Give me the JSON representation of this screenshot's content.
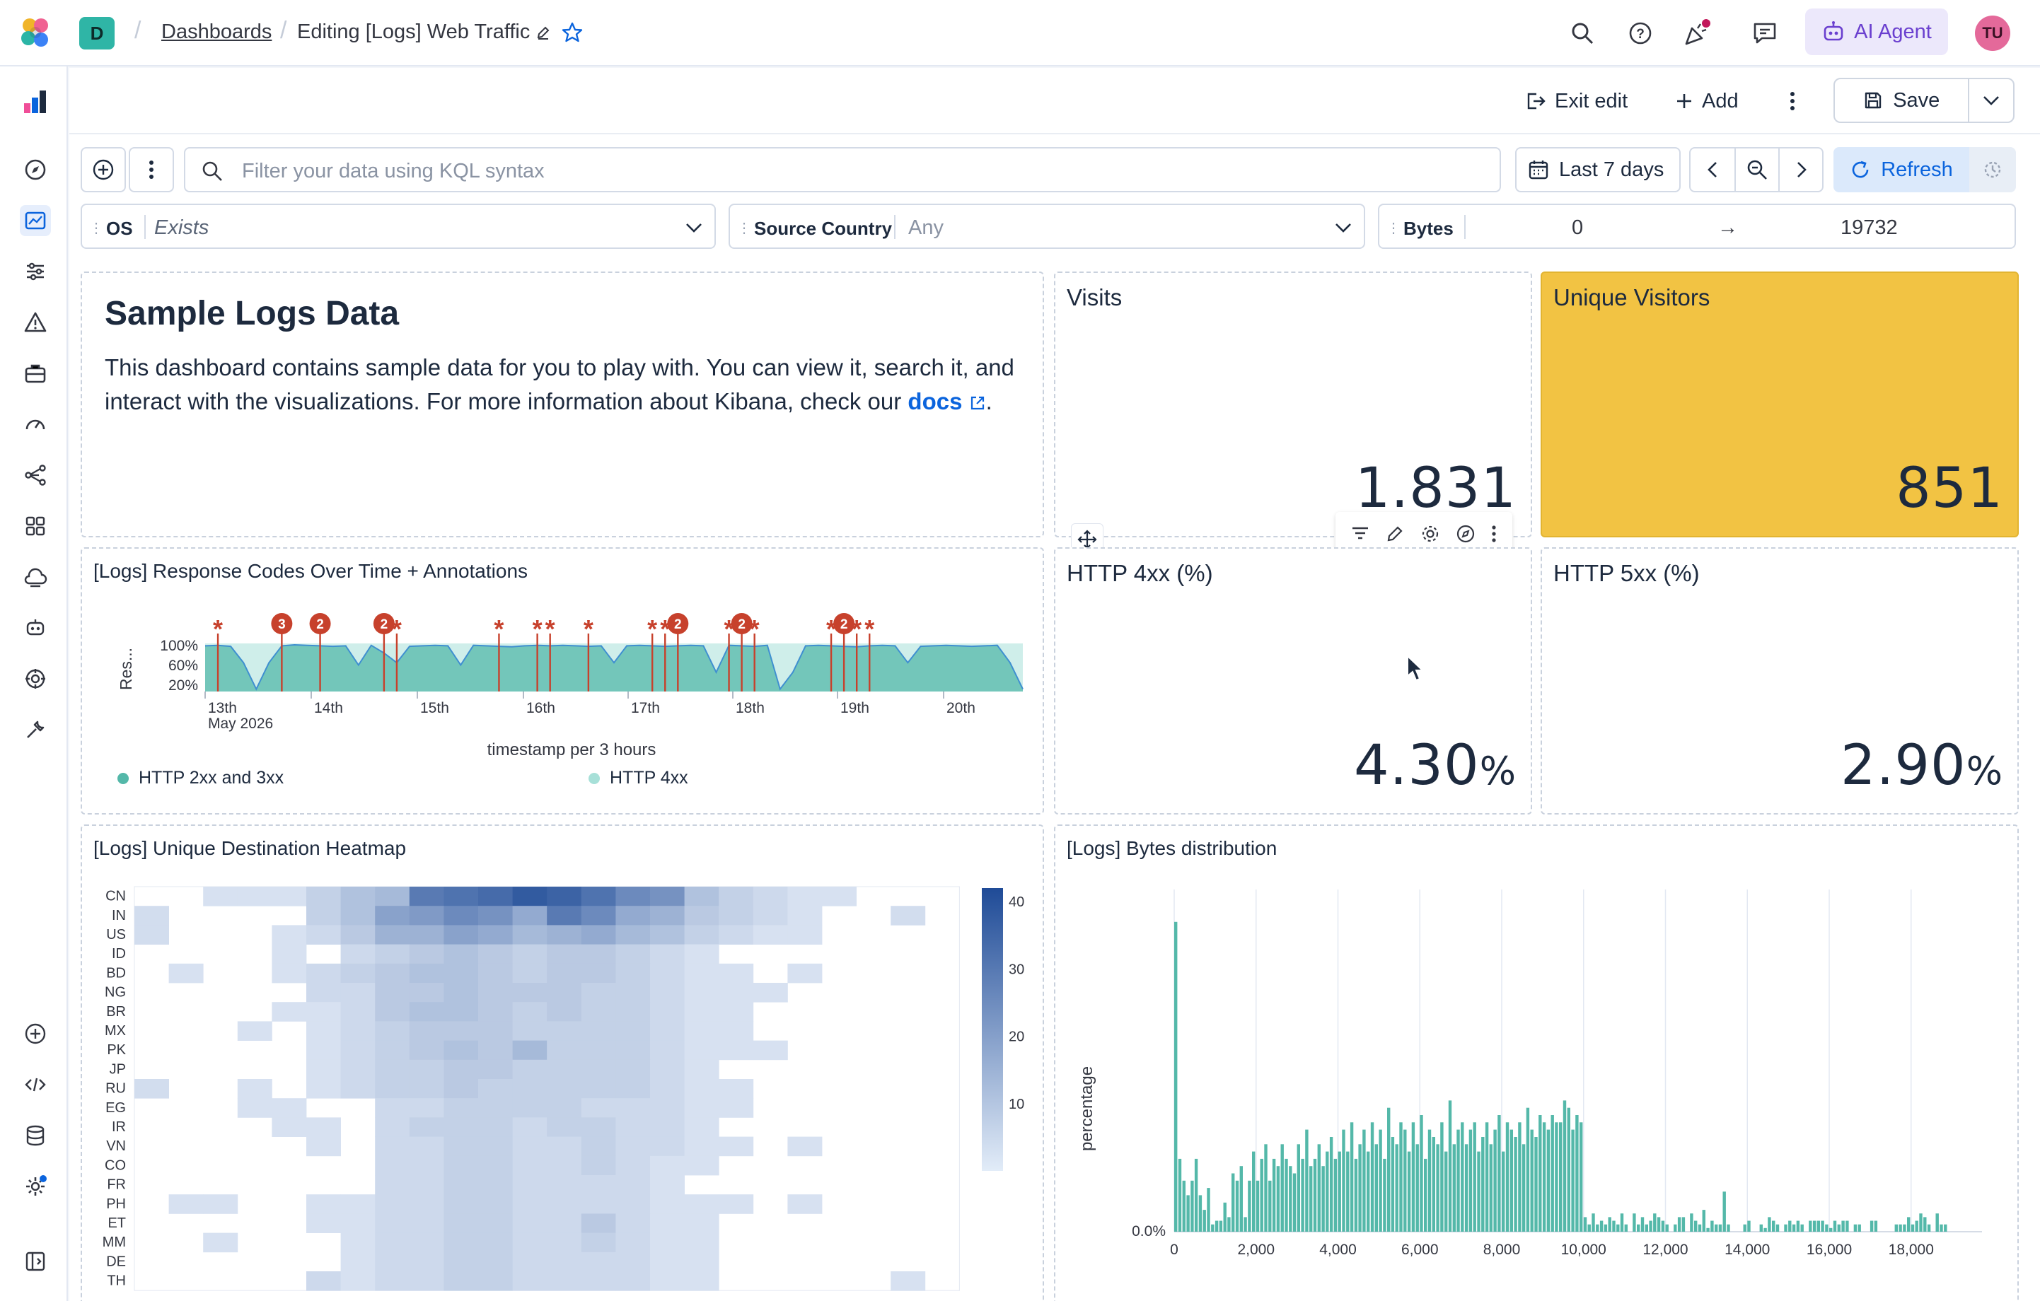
{
  "header": {
    "space_initial": "D",
    "breadcrumb_dashboards": "Dashboards",
    "breadcrumb_current": "Editing [Logs] Web Traffic",
    "ai_agent_label": "AI Agent",
    "user_initials": "TU"
  },
  "toolbar": {
    "exit_edit_label": "Exit edit",
    "add_label": "Add",
    "save_label": "Save"
  },
  "query": {
    "placeholder": "Filter your data using KQL syntax",
    "date_range_label": "Last 7 days",
    "refresh_label": "Refresh"
  },
  "controls": {
    "os": {
      "label": "OS",
      "value": "Exists"
    },
    "source_country": {
      "label": "Source Country",
      "value": "Any"
    },
    "bytes": {
      "label": "Bytes",
      "min": "0",
      "arrow": "→",
      "max": "19732"
    }
  },
  "markdown_panel": {
    "title": "Sample Logs Data",
    "text": "This dashboard contains sample data for you to play with. You can view it, search it, and interact with the visualizations. For more information about Kibana, check our",
    "link": "docs",
    "after_link": "."
  },
  "metrics": {
    "visits": {
      "title": "Visits",
      "value": "1.831"
    },
    "unique_visitors": {
      "title": "Unique Visitors",
      "value": "851",
      "color": "#f2c343"
    },
    "http_4xx": {
      "title": "HTTP 4xx (%)",
      "value": "4.30",
      "unit": "%"
    },
    "http_5xx": {
      "title": "HTTP 5xx (%)",
      "value": "2.90",
      "unit": "%"
    }
  },
  "colors": {
    "accent": "#0b64dd",
    "teal": "#54b8a9",
    "teal_light": "#a7e0d8",
    "annotation": "#c7412c",
    "heat_dark": "#1f4b97"
  },
  "chart_data": [
    {
      "type": "area",
      "title": "[Logs] Response Codes Over Time + Annotations",
      "ylabel": "Res...",
      "xlabel": "timestamp per 3 hours",
      "y_ticks": [
        "100%",
        "60%",
        "20%"
      ],
      "x_ticks": [
        "13th",
        "14th",
        "15th",
        "16th",
        "17th",
        "18th",
        "19th",
        "20th"
      ],
      "x_sublabel": "May 2026",
      "series": [
        {
          "name": "HTTP 2xx and 3xx",
          "color": "#54b8a9"
        },
        {
          "name": "HTTP 4xx",
          "color": "#a7e0d8"
        }
      ],
      "x": [
        0,
        1,
        2,
        3,
        4,
        5,
        6,
        7,
        8,
        9,
        10,
        11,
        12,
        13,
        14,
        15,
        16,
        17,
        18,
        19,
        20,
        21,
        22,
        23,
        24,
        25,
        26,
        27,
        28,
        29,
        30,
        31,
        32,
        33,
        34,
        35,
        36,
        37,
        38,
        39,
        40,
        41,
        42,
        43,
        44,
        45,
        46,
        47,
        48,
        49,
        50,
        51,
        52,
        53,
        54,
        55,
        56,
        57,
        58,
        59,
        60,
        61,
        62,
        63,
        64
      ],
      "values": [
        95,
        96,
        94,
        60,
        5,
        60,
        95,
        97,
        96,
        95,
        94,
        95,
        55,
        96,
        80,
        60,
        94,
        95,
        96,
        95,
        55,
        96,
        95,
        94,
        93,
        95,
        96,
        95,
        96,
        95,
        94,
        95,
        60,
        95,
        96,
        95,
        94,
        95,
        96,
        95,
        40,
        96,
        95,
        94,
        96,
        5,
        40,
        95,
        96,
        95,
        94,
        93,
        95,
        96,
        95,
        60,
        94,
        95,
        96,
        95,
        94,
        95,
        96,
        60,
        5
      ],
      "annotations": [
        {
          "x": 1,
          "label": "*"
        },
        {
          "x": 6,
          "label": "3"
        },
        {
          "x": 9,
          "label": "2"
        },
        {
          "x": 14,
          "label": "2"
        },
        {
          "x": 15,
          "label": "*"
        },
        {
          "x": 23,
          "label": "*"
        },
        {
          "x": 26,
          "label": "*"
        },
        {
          "x": 27,
          "label": "*"
        },
        {
          "x": 30,
          "label": "*"
        },
        {
          "x": 35,
          "label": "*"
        },
        {
          "x": 36,
          "label": "*"
        },
        {
          "x": 37,
          "label": "2"
        },
        {
          "x": 41,
          "label": "*"
        },
        {
          "x": 42,
          "label": "2"
        },
        {
          "x": 43,
          "label": "*"
        },
        {
          "x": 49,
          "label": "*"
        },
        {
          "x": 50,
          "label": "2"
        },
        {
          "x": 51,
          "label": "*"
        },
        {
          "x": 52,
          "label": "*"
        }
      ]
    },
    {
      "type": "heatmap",
      "title": "[Logs] Unique Destination Heatmap",
      "rows": [
        "CN",
        "IN",
        "US",
        "ID",
        "BD",
        "NG",
        "BR",
        "MX",
        "PK",
        "JP",
        "RU",
        "EG",
        "IR",
        "VN",
        "CO",
        "FR",
        "PH",
        "ET",
        "MM",
        "DE",
        "TH"
      ],
      "columns": 24,
      "legend_ticks": [
        "40",
        "30",
        "20",
        "10"
      ],
      "legend_range": [
        0,
        42
      ],
      "values": [
        [
          0,
          0,
          4,
          4,
          4,
          8,
          12,
          14,
          30,
          32,
          34,
          38,
          36,
          32,
          26,
          24,
          12,
          8,
          6,
          4,
          4,
          0,
          0,
          0
        ],
        [
          5,
          0,
          0,
          0,
          0,
          8,
          12,
          20,
          22,
          26,
          24,
          18,
          30,
          26,
          18,
          16,
          10,
          8,
          6,
          4,
          0,
          0,
          5,
          0
        ],
        [
          5,
          0,
          0,
          0,
          4,
          6,
          10,
          16,
          16,
          20,
          18,
          14,
          16,
          18,
          14,
          12,
          8,
          6,
          4,
          4,
          0,
          0,
          0,
          0
        ],
        [
          0,
          0,
          0,
          0,
          4,
          0,
          6,
          8,
          10,
          12,
          10,
          8,
          10,
          10,
          8,
          6,
          4,
          0,
          0,
          0,
          0,
          0,
          0,
          0
        ],
        [
          0,
          4,
          0,
          0,
          4,
          6,
          8,
          10,
          12,
          12,
          10,
          8,
          10,
          10,
          8,
          6,
          4,
          4,
          0,
          4,
          0,
          0,
          0,
          0
        ],
        [
          0,
          0,
          0,
          0,
          0,
          6,
          6,
          10,
          10,
          12,
          10,
          10,
          10,
          8,
          8,
          6,
          4,
          4,
          4,
          0,
          0,
          0,
          0,
          0
        ],
        [
          0,
          0,
          0,
          0,
          4,
          4,
          6,
          10,
          12,
          12,
          10,
          8,
          10,
          8,
          8,
          6,
          4,
          4,
          0,
          0,
          0,
          0,
          0,
          0
        ],
        [
          0,
          0,
          0,
          4,
          0,
          4,
          6,
          8,
          10,
          10,
          10,
          8,
          8,
          8,
          8,
          6,
          4,
          4,
          0,
          0,
          0,
          0,
          0,
          0
        ],
        [
          0,
          0,
          0,
          0,
          0,
          4,
          6,
          8,
          10,
          12,
          10,
          14,
          8,
          8,
          8,
          6,
          4,
          4,
          4,
          0,
          0,
          0,
          0,
          0
        ],
        [
          0,
          0,
          0,
          0,
          0,
          4,
          6,
          8,
          8,
          10,
          10,
          8,
          8,
          8,
          8,
          6,
          4,
          0,
          0,
          0,
          0,
          0,
          0,
          0
        ],
        [
          5,
          0,
          0,
          4,
          0,
          4,
          6,
          8,
          8,
          10,
          8,
          8,
          8,
          8,
          8,
          6,
          4,
          4,
          0,
          0,
          0,
          0,
          0,
          0
        ],
        [
          0,
          0,
          0,
          4,
          4,
          0,
          0,
          6,
          6,
          8,
          8,
          8,
          8,
          6,
          6,
          6,
          4,
          4,
          0,
          0,
          0,
          0,
          0,
          0
        ],
        [
          0,
          0,
          0,
          0,
          4,
          4,
          0,
          6,
          8,
          8,
          8,
          6,
          8,
          8,
          6,
          6,
          4,
          0,
          0,
          0,
          0,
          0,
          0,
          0
        ],
        [
          0,
          0,
          0,
          0,
          0,
          4,
          0,
          6,
          6,
          8,
          8,
          6,
          6,
          8,
          6,
          6,
          4,
          4,
          0,
          4,
          0,
          0,
          0,
          0
        ],
        [
          0,
          0,
          0,
          0,
          0,
          0,
          0,
          6,
          6,
          8,
          8,
          6,
          6,
          8,
          6,
          4,
          4,
          0,
          0,
          0,
          0,
          0,
          0,
          0
        ],
        [
          0,
          0,
          0,
          0,
          0,
          0,
          0,
          6,
          6,
          8,
          8,
          6,
          6,
          6,
          6,
          4,
          0,
          0,
          0,
          0,
          0,
          0,
          0,
          0
        ],
        [
          0,
          4,
          4,
          0,
          0,
          4,
          4,
          6,
          6,
          8,
          8,
          6,
          6,
          6,
          6,
          4,
          4,
          4,
          0,
          4,
          0,
          0,
          0,
          0
        ],
        [
          0,
          0,
          0,
          0,
          0,
          4,
          4,
          6,
          6,
          8,
          8,
          6,
          6,
          10,
          6,
          4,
          4,
          0,
          0,
          0,
          0,
          0,
          0,
          0
        ],
        [
          0,
          0,
          4,
          0,
          0,
          0,
          4,
          6,
          6,
          8,
          8,
          6,
          6,
          8,
          6,
          4,
          4,
          0,
          0,
          0,
          0,
          0,
          0,
          0
        ],
        [
          0,
          0,
          0,
          0,
          0,
          0,
          4,
          6,
          6,
          8,
          8,
          6,
          6,
          6,
          6,
          4,
          4,
          0,
          0,
          0,
          0,
          0,
          0,
          0
        ],
        [
          0,
          0,
          0,
          0,
          0,
          6,
          4,
          6,
          6,
          8,
          8,
          6,
          6,
          6,
          6,
          4,
          4,
          0,
          0,
          0,
          0,
          0,
          4,
          0
        ]
      ]
    },
    {
      "type": "bar",
      "title": "[Logs] Bytes distribution",
      "ylabel": "percentage",
      "y_tick": "0.0%",
      "x_ticks": [
        "0",
        "2,000",
        "4,000",
        "6,000",
        "8,000",
        "10,000",
        "12,000",
        "14,000",
        "16,000",
        "18,000"
      ],
      "x_range": [
        0,
        19732
      ],
      "bin_width": 100,
      "values": [
        85,
        20,
        14,
        10,
        14,
        20,
        10,
        6,
        12,
        2,
        3,
        3,
        8,
        4,
        16,
        14,
        18,
        4,
        14,
        22,
        14,
        20,
        24,
        14,
        20,
        18,
        24,
        20,
        18,
        16,
        24,
        20,
        28,
        18,
        20,
        24,
        18,
        22,
        26,
        20,
        22,
        28,
        22,
        30,
        20,
        24,
        28,
        22,
        30,
        24,
        28,
        20,
        34,
        26,
        24,
        30,
        28,
        22,
        30,
        24,
        32,
        20,
        28,
        26,
        24,
        30,
        22,
        36,
        24,
        28,
        30,
        24,
        28,
        30,
        22,
        26,
        30,
        24,
        28,
        32,
        22,
        30,
        28,
        26,
        30,
        24,
        34,
        28,
        26,
        32,
        30,
        28,
        32,
        30,
        30,
        36,
        34,
        28,
        32,
        30,
        4,
        2,
        5,
        2,
        3,
        2,
        4,
        3,
        2,
        5,
        2,
        0,
        5,
        2,
        4,
        2,
        3,
        5,
        4,
        3,
        2,
        0,
        2,
        4,
        4,
        0,
        5,
        3,
        2,
        6,
        1,
        3,
        2,
        2,
        11,
        2,
        0,
        0,
        0,
        2,
        3,
        0,
        0,
        2,
        1,
        4,
        3,
        2,
        0,
        2,
        3,
        2,
        3,
        2,
        0,
        3,
        3,
        3,
        3,
        2,
        1,
        3,
        2,
        3,
        3,
        0,
        2,
        2,
        0,
        0,
        3,
        3,
        0,
        0,
        0,
        0,
        2,
        2,
        2,
        4,
        2,
        3,
        5,
        4,
        2,
        0,
        5,
        2,
        2
      ]
    }
  ]
}
